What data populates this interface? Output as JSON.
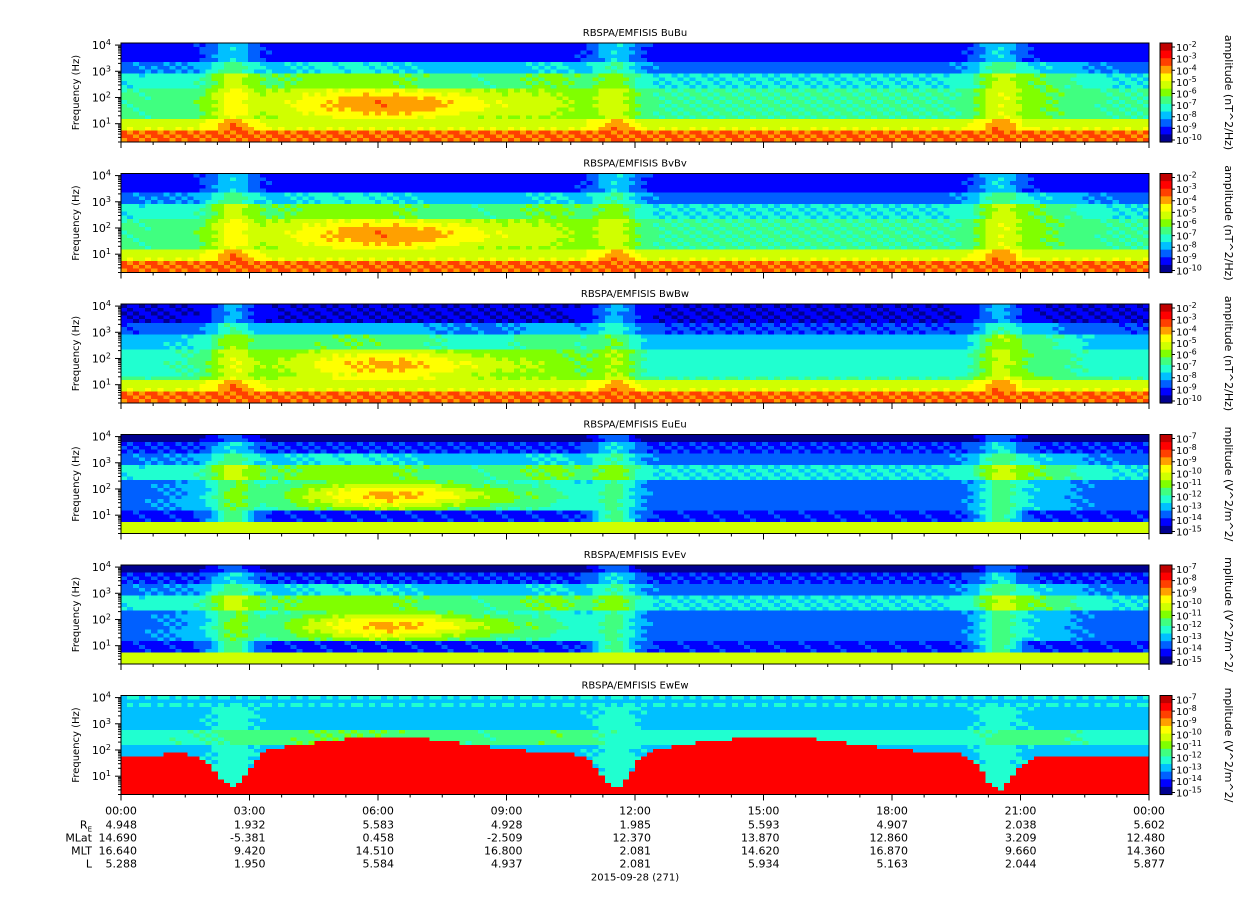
{
  "colors": {
    "palette": [
      "#000090",
      "#0000ff",
      "#0060ff",
      "#00c0ff",
      "#20ffd0",
      "#40ff80",
      "#80ff00",
      "#d0ff00",
      "#ffff00",
      "#ffa000",
      "#ff4000",
      "#ff0000",
      "#c00000"
    ]
  },
  "chart_data": [
    {
      "type": "heatmap",
      "title": "RBSPA/EMFISIS  BuBu",
      "ylabel": "Frequency (Hz)",
      "yscale": "log",
      "ylim": [
        2,
        12000
      ],
      "yticks": [
        "10^1",
        "10^2",
        "10^3",
        "10^4"
      ],
      "colorbar_label": "amplitude (nT^2/Hz)",
      "colorbar_ticks": [
        "10^-2",
        "10^-3",
        "10^-4",
        "10^-5",
        "10^-6",
        "10^-7",
        "10^-8",
        "10^-9",
        "10^-10"
      ],
      "zrange": [
        "10^-10",
        "10^-2"
      ],
      "profile": "B"
    },
    {
      "type": "heatmap",
      "title": "RBSPA/EMFISIS  BvBv",
      "ylabel": "Frequency (Hz)",
      "yscale": "log",
      "ylim": [
        2,
        12000
      ],
      "yticks": [
        "10^1",
        "10^2",
        "10^3",
        "10^4"
      ],
      "colorbar_label": "amplitude (nT^2/Hz)",
      "colorbar_ticks": [
        "10^-2",
        "10^-3",
        "10^-4",
        "10^-5",
        "10^-6",
        "10^-7",
        "10^-8",
        "10^-9",
        "10^-10"
      ],
      "zrange": [
        "10^-10",
        "10^-2"
      ],
      "profile": "B"
    },
    {
      "type": "heatmap",
      "title": "RBSPA/EMFISIS  BwBw",
      "ylabel": "Frequency (Hz)",
      "yscale": "log",
      "ylim": [
        2,
        12000
      ],
      "yticks": [
        "10^1",
        "10^2",
        "10^3",
        "10^4"
      ],
      "colorbar_label": "amplitude (nT^2/Hz)",
      "colorbar_ticks": [
        "10^-2",
        "10^-3",
        "10^-4",
        "10^-5",
        "10^-6",
        "10^-7",
        "10^-8",
        "10^-9",
        "10^-10"
      ],
      "zrange": [
        "10^-10",
        "10^-2"
      ],
      "profile": "Bw"
    },
    {
      "type": "heatmap",
      "title": "RBSPA/EMFISIS  EuEu",
      "ylabel": "Frequency (Hz)",
      "yscale": "log",
      "ylim": [
        2,
        12000
      ],
      "yticks": [
        "10^1",
        "10^2",
        "10^3",
        "10^4"
      ],
      "colorbar_label": "mplitude (V^2/m^2/",
      "colorbar_ticks": [
        "10^-7",
        "10^-8",
        "10^-9",
        "10^-10",
        "10^-11",
        "10^-12",
        "10^-13",
        "10^-14",
        "10^-15"
      ],
      "zrange": [
        "10^-15",
        "10^-7"
      ],
      "profile": "E"
    },
    {
      "type": "heatmap",
      "title": "RBSPA/EMFISIS  EvEv",
      "ylabel": "Frequency (Hz)",
      "yscale": "log",
      "ylim": [
        2,
        12000
      ],
      "yticks": [
        "10^1",
        "10^2",
        "10^3",
        "10^4"
      ],
      "colorbar_label": "mplitude (V^2/m^2/",
      "colorbar_ticks": [
        "10^-7",
        "10^-8",
        "10^-9",
        "10^-10",
        "10^-11",
        "10^-12",
        "10^-13",
        "10^-14",
        "10^-15"
      ],
      "zrange": [
        "10^-15",
        "10^-7"
      ],
      "profile": "E"
    },
    {
      "type": "heatmap",
      "title": "RBSPA/EMFISIS  EwEw",
      "ylabel": "Frequency (Hz)",
      "yscale": "log",
      "ylim": [
        2,
        12000
      ],
      "yticks": [
        "10^1",
        "10^2",
        "10^3",
        "10^4"
      ],
      "colorbar_label": "mplitude (V^2/m^2/",
      "colorbar_ticks": [
        "10^-7",
        "10^-8",
        "10^-9",
        "10^-10",
        "10^-11",
        "10^-12",
        "10^-13",
        "10^-14",
        "10^-15"
      ],
      "zrange": [
        "10^-15",
        "10^-7"
      ],
      "profile": "Ew"
    }
  ],
  "time_axis": {
    "ticks": [
      "00:00",
      "03:00",
      "06:00",
      "09:00",
      "12:00",
      "15:00",
      "18:00",
      "21:00",
      "00:00"
    ],
    "minor_ticks_per_major": 3,
    "date_label": "2015-09-28 (271)"
  },
  "ephemeris": {
    "rows": [
      {
        "label": "RE",
        "values": [
          "4.948",
          "1.932",
          "5.583",
          "4.928",
          "1.985",
          "5.593",
          "4.907",
          "2.038",
          "5.602"
        ]
      },
      {
        "label": "MLat",
        "values": [
          "14.690",
          "-5.381",
          "0.458",
          "-2.509",
          "12.370",
          "13.870",
          "12.860",
          "3.209",
          "12.480"
        ]
      },
      {
        "label": "MLT",
        "values": [
          "16.640",
          "9.420",
          "14.510",
          "16.800",
          "2.081",
          "14.620",
          "16.870",
          "9.660",
          "14.360"
        ]
      },
      {
        "label": "L",
        "values": [
          "5.288",
          "1.950",
          "5.584",
          "4.937",
          "2.081",
          "5.934",
          "5.163",
          "2.044",
          "5.877"
        ]
      }
    ]
  }
}
